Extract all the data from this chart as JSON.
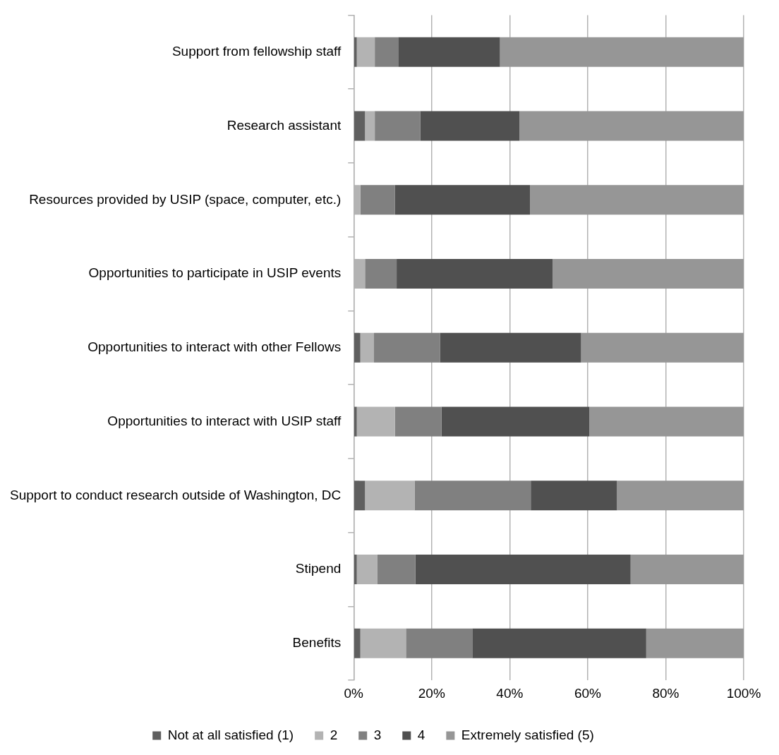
{
  "chart_data": {
    "type": "bar",
    "orientation": "horizontal",
    "stacked": true,
    "categories": [
      "Support from fellowship staff",
      "Research assistant",
      "Resources provided by USIP (space, computer, etc.)",
      "Opportunities to participate in USIP events",
      "Opportunities to interact with other Fellows",
      "Opportunities to interact with USIP staff",
      "Support to conduct research outside of Washington, DC",
      "Stipend",
      "Benefits"
    ],
    "series": [
      {
        "name": "Not at all satisfied (1)",
        "color": "#5f5f5f",
        "values": [
          0.8,
          2.9,
          0,
          0,
          1.7,
          0.8,
          2.9,
          0.8,
          1.7
        ]
      },
      {
        "name": "2",
        "color": "#b3b3b3",
        "values": [
          4.6,
          2.5,
          1.7,
          2.9,
          3.5,
          9.8,
          12.7,
          5.2,
          11.7
        ]
      },
      {
        "name": "3",
        "color": "#808080",
        "values": [
          6.0,
          11.7,
          8.9,
          8.1,
          16.9,
          11.9,
          29.8,
          9.8,
          17.0
        ]
      },
      {
        "name": "4",
        "color": "#505050",
        "values": [
          26.1,
          25.4,
          34.6,
          40.0,
          36.2,
          37.9,
          22.1,
          55.2,
          44.6
        ]
      },
      {
        "name": "Extremely satisfied (5)",
        "color": "#969696",
        "values": [
          62.5,
          57.5,
          54.8,
          49.0,
          41.7,
          39.6,
          32.5,
          29.0,
          25.0
        ]
      }
    ],
    "xlim": [
      0,
      100
    ],
    "xticks": [
      {
        "value": 0,
        "label": "0%"
      },
      {
        "value": 20,
        "label": "20%"
      },
      {
        "value": 40,
        "label": "40%"
      },
      {
        "value": 60,
        "label": "60%"
      },
      {
        "value": 80,
        "label": "80%"
      },
      {
        "value": 100,
        "label": "100%"
      }
    ],
    "grid": "x",
    "legend": "bottom"
  }
}
